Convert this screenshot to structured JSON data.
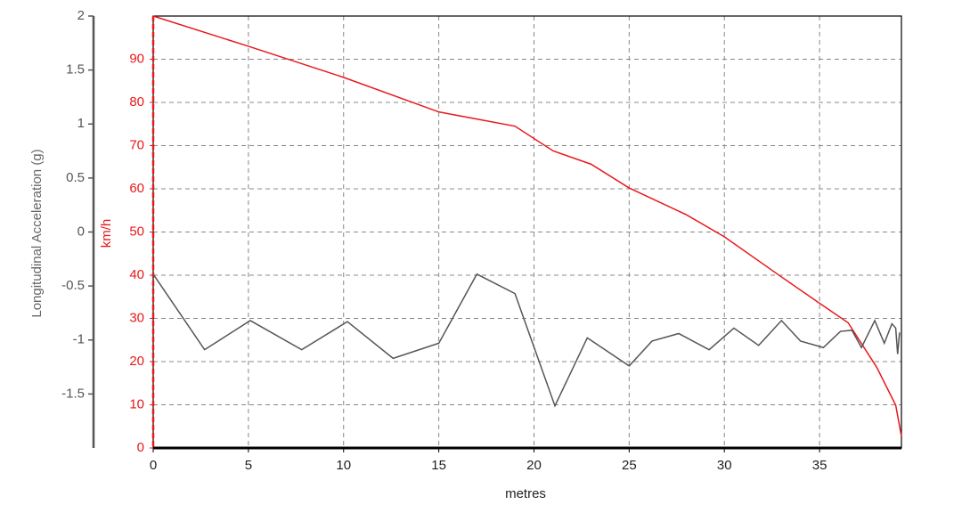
{
  "chart_data": {
    "type": "line",
    "xlabel": "metres",
    "ylabel": "Longitudinal Acceleration (g)",
    "y2label": "km/h",
    "xlim": [
      0,
      39.3
    ],
    "xticks": [
      0,
      5,
      10,
      15,
      20,
      25,
      30,
      35
    ],
    "ylim": [
      -2,
      2
    ],
    "yticks": [
      -1.5,
      -1,
      -0.5,
      0,
      0.5,
      1,
      1.5,
      2
    ],
    "y2lim": [
      0,
      100
    ],
    "y2ticks": [
      0,
      10,
      20,
      30,
      40,
      50,
      60,
      70,
      80,
      90
    ],
    "grid": true,
    "series": [
      {
        "color": "#e8191c",
        "axis": "y2",
        "x": [
          0,
          5,
          10,
          15,
          19,
          21,
          23,
          25,
          28,
          30,
          33,
          35,
          36.5,
          38,
          39,
          39.3
        ],
        "values": [
          100,
          93,
          85.8,
          77.8,
          74.5,
          68.8,
          65.7,
          60.2,
          54,
          48.9,
          39.6,
          33.5,
          29,
          18.7,
          9.9,
          2.7
        ]
      },
      {
        "color": "#555555",
        "axis": "y",
        "x": [
          0,
          2.7,
          5.1,
          7.8,
          10.2,
          12.6,
          15,
          17,
          19,
          21.1,
          22.8,
          25,
          26.2,
          27.6,
          29.2,
          30.5,
          31.8,
          33,
          34,
          35.2,
          36.1,
          36.7,
          37.2,
          37.9,
          38.4,
          38.8,
          39.0,
          39.1,
          39.2
        ],
        "values": [
          -0.39,
          -1.09,
          -0.82,
          -1.09,
          -0.83,
          -1.17,
          -1.03,
          -0.39,
          -0.57,
          -1.61,
          -0.98,
          -1.24,
          -1.01,
          -0.94,
          -1.09,
          -0.89,
          -1.05,
          -0.82,
          -1.01,
          -1.07,
          -0.92,
          -0.91,
          -1.07,
          -0.82,
          -1.03,
          -0.85,
          -0.89,
          -1.13,
          -0.93
        ]
      }
    ]
  }
}
